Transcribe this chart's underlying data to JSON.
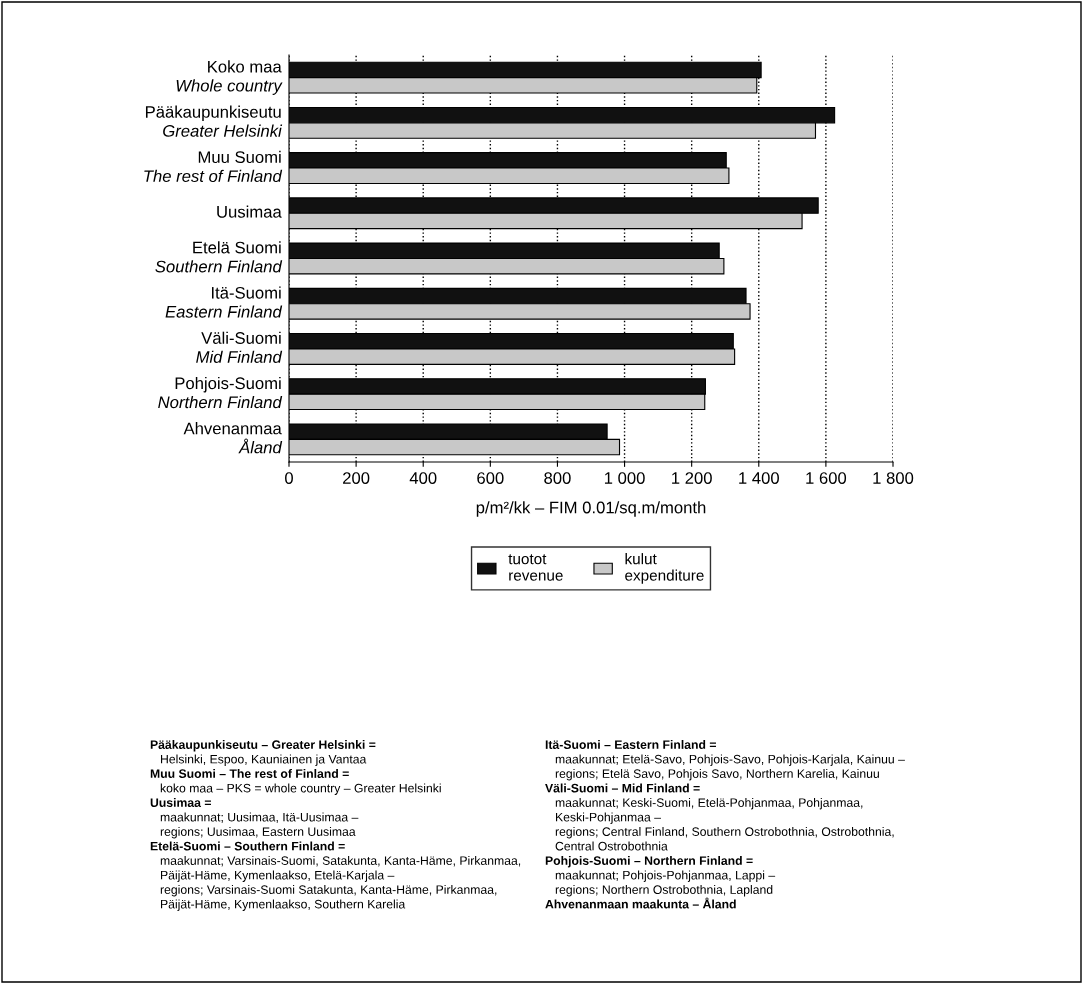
{
  "chart_data": {
    "type": "bar",
    "orientation": "horizontal",
    "categories": [
      "Koko maa\nWhole country",
      "Pääkaupunkiseutu\nGreater Helsinki",
      "Muu Suomi\nThe rest of Finland",
      "Uusimaa",
      "Etelä Suomi\nSouthern Finland",
      "Itä-Suomi\nEastern Finland",
      "Väli-Suomi\nMid Finland",
      "Pohjois-Suomi\nNorthern Finland",
      "Ahvenanmaa\nÅland"
    ],
    "series": [
      {
        "name": "tuotot\nrevenue",
        "color": "#111111",
        "values": [
          1407,
          1626,
          1303,
          1577,
          1282,
          1362,
          1324,
          1241,
          948
        ]
      },
      {
        "name": "kulut\nexpenditure",
        "color": "#c8c8c8",
        "values": [
          1394,
          1569,
          1311,
          1529,
          1296,
          1374,
          1328,
          1239,
          985
        ]
      }
    ],
    "xlim": [
      0,
      1800
    ],
    "xticks": [
      0,
      200,
      400,
      {
        "value": 600,
        "label": "600"
      },
      800,
      {
        "value": 1000,
        "label": "1 000"
      },
      {
        "value": 1200,
        "label": "1 200"
      },
      {
        "value": 1400,
        "label": "1 400"
      },
      {
        "value": 1600,
        "label": "1 600"
      },
      {
        "value": 1800,
        "label": "1 800"
      }
    ],
    "xlabel": "p/m²/kk – FIM 0.01/sq.m/month",
    "grid": "x",
    "legend": "bottom",
    "annotations": [
      "Pääkaupunkiseutu – Greater Helsinki =\nHelsinki, Espoo, Kauniainen ja Vantaa",
      "Muu Suomi – The rest of Finland =\nkoko maa – PKS = whole country – Greater Helsinki",
      "Uusimaa =\nmaakunnat; Uusimaa, Itä-Uusimaa –\nregions; Uusimaa, Eastern Uusimaa",
      "Etelä-Suomi – Southern Finland =\nmaakunnat; Varsinais-Suomi, Satakunta, Kanta-Häme, Pirkanmaa,\nPäijät-Häme, Kymenlaakso, Etelä-Karjala –\nregions; Varsinais-Suomi Satakunta, Kanta-Häme, Pirkanmaa,\nPäijät-Häme, Kymenlaakso, Southern Karelia",
      "Itä-Suomi – Eastern Finland =\nmaakunnat; Etelä-Savo, Pohjois-Savo, Pohjois-Karjala, Kainuu –\nregions; Etelä Savo, Pohjois Savo, Northern Karelia, Kainuu",
      "Väli-Suomi – Mid Finland =\nmaakunnat; Keski-Suomi, Etelä-Pohjanmaa, Pohjanmaa,\nKeski-Pohjanmaa –\nregions; Central Finland, Southern Ostrobothnia, Ostrobothnia,\nCentral Ostrobothnia",
      "Pohjois-Suomi – Northern Finland =\nmaakunnat; Pohjois-Pohjanmaa, Lappi –\nregions; Northern Ostrobothnia, Lapland",
      "Ahvenanmaan maakunta – Åland"
    ]
  }
}
